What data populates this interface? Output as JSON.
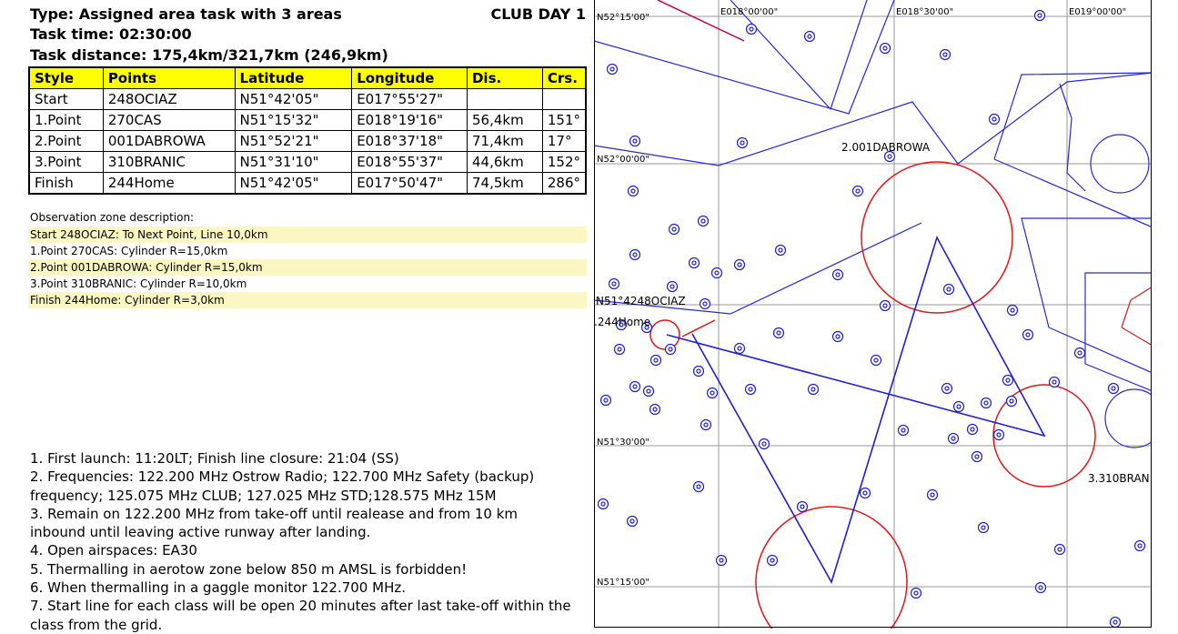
{
  "header": {
    "type": "Type: Assigned area task with 3 areas",
    "time": "Task time: 02:30:00",
    "distance": "Task distance: 175,4km/321,7km (246,9km)",
    "club": "CLUB DAY 1"
  },
  "table": {
    "columns": [
      "Style",
      "Points",
      "Latitude",
      "Longitude",
      "Dis.",
      "Crs."
    ],
    "rows": [
      [
        "Start",
        "248OCIAZ",
        "N51°42'05\"",
        "E017°55'27\"",
        "",
        ""
      ],
      [
        "1.Point",
        "270CAS",
        "N51°15'32\"",
        "E018°19'16\"",
        "56,4km",
        "151°"
      ],
      [
        "2.Point",
        "001DABROWA",
        "N51°52'21\"",
        "E018°37'18\"",
        "71,4km",
        "17°"
      ],
      [
        "3.Point",
        "310BRANIC",
        "N51°31'10\"",
        "E018°55'37\"",
        "44,6km",
        "152°"
      ],
      [
        "Finish",
        "244Home",
        "N51°42'05\"",
        "E017°50'47\"",
        "74,5km",
        "286°"
      ]
    ]
  },
  "observation": {
    "title": "Observation zone description:",
    "lines": [
      "Start 248OCIAZ: To Next Point, Line 10,0km",
      "1.Point 270CAS: Cylinder R=15,0km",
      "2.Point 001DABROWA: Cylinder R=15,0km",
      "3.Point 310BRANIC: Cylinder R=10,0km",
      "Finish 244Home: Cylinder R=3,0km"
    ]
  },
  "notes": [
    "1. First launch: 11:20LT; Finish line closure: 21:04 (SS)",
    "2. Frequencies: 122.200 MHz Ostrow Radio; 122.700 MHz Safety (backup) frequency; 125.075 MHz CLUB; 127.025 MHz STD;128.575 MHz 15M",
    "3. Remain on 122.200 MHz from take-off until realease and from 10 km inbound until leaving active runway after landing.",
    "4. Open airspaces: EA30",
    "5. Thermalling in aerotow zone below 850 m AMSL is forbidden!",
    "6. When thermalling in a gaggle monitor 122.700 MHz.",
    "7. Start line for each class will be open 20 minutes after last take-off within the class from the grid."
  ],
  "map": {
    "lon_labels": [
      "E018°00'00\"",
      "E018°30'00\"",
      "E019°00'00\""
    ],
    "lat_labels": [
      "N52°15'00\"",
      "N52°00'00\"",
      "N51°30'00\"",
      "N51°15'00\""
    ],
    "start_label": "N51°4248OCIAZ",
    "home_label": ".244Home",
    "tp2_label": "2.001DABROWA",
    "tp3_label": "3.310BRAN",
    "colors": {
      "airspace": "#2020d0",
      "zone": "#e01010",
      "route": "#2020d0",
      "grid": "#999999",
      "restricted": "#c00040"
    }
  }
}
